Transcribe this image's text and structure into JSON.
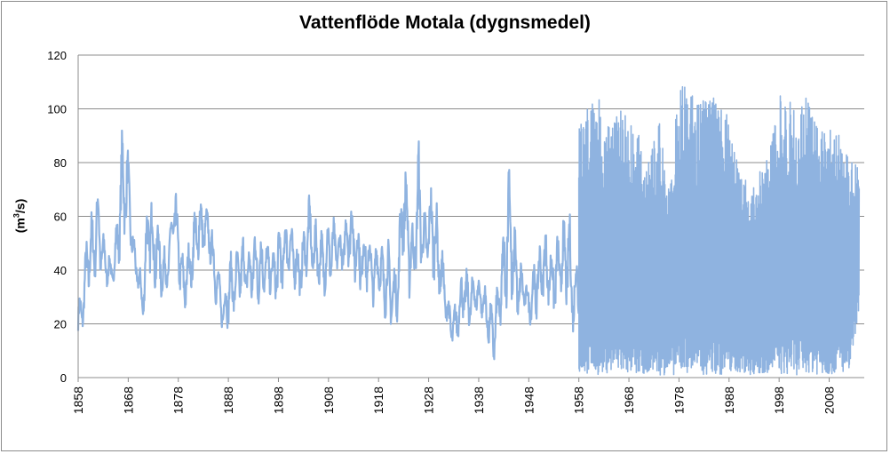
{
  "chart_data": {
    "type": "line",
    "title": "Vattenflöde Motala (dygnsmedel)",
    "ylabel": "(m³/s)",
    "xlabel": "",
    "ylim": [
      0,
      120
    ],
    "yticks": [
      0,
      20,
      40,
      60,
      80,
      100,
      120
    ],
    "xlim": [
      1858,
      2015
    ],
    "xticks": [
      "1858",
      "1868",
      "1878",
      "1888",
      "1898",
      "1908",
      "1918",
      "1928",
      "1938",
      "1948",
      "1958",
      "1968",
      "1978",
      "1988",
      "1998",
      "2008"
    ],
    "grid": "horizontal",
    "legend": "none",
    "line_color": "#8fb3e0",
    "series": [
      {
        "x": [
          1858,
          1859,
          1860,
          1861,
          1862,
          1863,
          1864,
          1865,
          1866,
          1867,
          1868,
          1869,
          1870,
          1871,
          1872,
          1873,
          1874,
          1875,
          1876,
          1877,
          1878,
          1879,
          1880,
          1881,
          1882,
          1883,
          1884,
          1885,
          1886,
          1887,
          1888,
          1889,
          1890,
          1891,
          1892,
          1893,
          1894,
          1895,
          1896,
          1897,
          1898,
          1899,
          1900,
          1901,
          1902,
          1903,
          1904,
          1905,
          1906,
          1907,
          1908,
          1909,
          1910,
          1911,
          1912,
          1913,
          1914,
          1915,
          1916,
          1917,
          1918,
          1919,
          1920,
          1921,
          1922,
          1923,
          1924,
          1925,
          1926,
          1927,
          1928,
          1929,
          1930,
          1931,
          1932,
          1933,
          1934,
          1935,
          1936,
          1937,
          1938,
          1939,
          1940,
          1941,
          1942,
          1943,
          1944,
          1945,
          1946,
          1947,
          1948,
          1949,
          1950,
          1951,
          1952,
          1953,
          1954,
          1955,
          1956,
          1957,
          1958
        ],
        "min": [
          12,
          18,
          28,
          35,
          36,
          34,
          33,
          34,
          40,
          48,
          55,
          38,
          30,
          20,
          38,
          30,
          33,
          26,
          35,
          45,
          36,
          20,
          30,
          32,
          40,
          45,
          48,
          30,
          24,
          16,
          18,
          22,
          26,
          30,
          28,
          25,
          24,
          30,
          32,
          27,
          26,
          30,
          38,
          34,
          27,
          32,
          40,
          35,
          33,
          30,
          32,
          36,
          40,
          38,
          40,
          36,
          28,
          32,
          30,
          26,
          32,
          22,
          20,
          16,
          22,
          46,
          28,
          34,
          42,
          36,
          40,
          34,
          30,
          24,
          14,
          9,
          14,
          20,
          16,
          22,
          24,
          20,
          10,
          4,
          14,
          22,
          28,
          20,
          18,
          26,
          20,
          18,
          24,
          28,
          26,
          22,
          26,
          28,
          22,
          15,
          20
        ],
        "max": [
          30,
          35,
          64,
          62,
          77,
          55,
          48,
          42,
          70,
          100,
          85,
          55,
          45,
          35,
          79,
          66,
          60,
          50,
          45,
          79,
          62,
          45,
          50,
          62,
          72,
          65,
          63,
          55,
          42,
          30,
          48,
          46,
          50,
          54,
          48,
          58,
          60,
          50,
          52,
          48,
          58,
          62,
          60,
          56,
          50,
          55,
          70,
          60,
          58,
          54,
          61,
          60,
          55,
          55,
          71,
          67,
          60,
          56,
          58,
          47,
          55,
          48,
          52,
          40,
          54,
          91,
          70,
          56,
          91,
          62,
          68,
          81,
          55,
          45,
          30,
          26,
          35,
          45,
          38,
          40,
          38,
          36,
          31,
          26,
          40,
          56,
          91,
          62,
          48,
          40,
          34,
          44,
          50,
          57,
          53,
          48,
          56,
          60,
          67,
          40,
          60
        ]
      },
      {
        "x": [
          1958,
          1960,
          1962,
          1964,
          1966,
          1968,
          1970,
          1972,
          1974,
          1976,
          1978,
          1980,
          1982,
          1984,
          1986,
          1988,
          1990,
          1992,
          1994,
          1996,
          1998,
          2000,
          2002,
          2004,
          2006,
          2008,
          2010,
          2012,
          2014
        ],
        "min": [
          2,
          1,
          1,
          2,
          1,
          1,
          1,
          2,
          1,
          1,
          1,
          2,
          1,
          1,
          1,
          1,
          2,
          1,
          1,
          2,
          1,
          1,
          1,
          2,
          1,
          1,
          2,
          1,
          26
        ],
        "max": [
          96,
          105,
          104,
          94,
          107,
          98,
          90,
          84,
          96,
          70,
          110,
          108,
          104,
          106,
          104,
          98,
          80,
          70,
          76,
          90,
          107,
          106,
          100,
          106,
          92,
          94,
          92,
          80,
          80
        ]
      }
    ]
  }
}
